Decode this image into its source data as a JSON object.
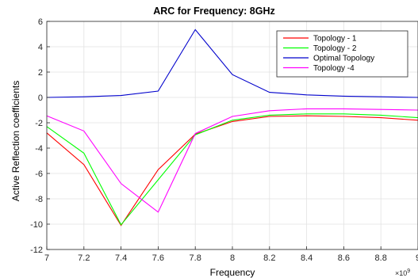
{
  "chart_data": {
    "type": "line",
    "title": "ARC for Frequency: 8GHz",
    "xlabel": "Frequency",
    "ylabel": "Active Reflection coefficients",
    "x_exponent_label": "×10",
    "x_exponent_power": "9",
    "xlim": [
      7.0,
      9.0
    ],
    "ylim": [
      -12,
      6
    ],
    "x_ticks": [
      7.0,
      7.2,
      7.4,
      7.6,
      7.8,
      8.0,
      8.2,
      8.4,
      8.6,
      8.8,
      9.0
    ],
    "x_tick_labels": [
      "7",
      "7.2",
      "7.4",
      "7.6",
      "7.8",
      "8",
      "8.2",
      "8.4",
      "8.6",
      "8.8",
      "9"
    ],
    "y_ticks": [
      -12,
      -10,
      -8,
      -6,
      -4,
      -2,
      0,
      2,
      4,
      6
    ],
    "y_tick_labels": [
      "-12",
      "-10",
      "-8",
      "-6",
      "-4",
      "-2",
      "0",
      "2",
      "4",
      "6"
    ],
    "grid": true,
    "legend_position": "top-right",
    "x": [
      7.0,
      7.2,
      7.4,
      7.6,
      7.8,
      8.0,
      8.2,
      8.4,
      8.6,
      8.8,
      9.0
    ],
    "series": [
      {
        "name": "Topology - 1",
        "color": "#ff0000",
        "values": [
          -2.8,
          -5.3,
          -10.1,
          -5.7,
          -2.9,
          -1.9,
          -1.5,
          -1.45,
          -1.5,
          -1.6,
          -1.8
        ]
      },
      {
        "name": "Topology - 2",
        "color": "#00ff00",
        "values": [
          -2.3,
          -4.4,
          -10.05,
          -6.5,
          -2.95,
          -1.8,
          -1.4,
          -1.3,
          -1.3,
          -1.4,
          -1.6
        ]
      },
      {
        "name": "Optimal Topology",
        "color": "#0000cc",
        "values": [
          0.0,
          0.05,
          0.15,
          0.5,
          5.35,
          1.8,
          0.4,
          0.2,
          0.1,
          0.05,
          0.0
        ]
      },
      {
        "name": "Topology -4",
        "color": "#ff00ff",
        "values": [
          -1.45,
          -2.65,
          -6.8,
          -9.05,
          -2.85,
          -1.5,
          -1.05,
          -0.9,
          -0.9,
          -0.95,
          -1.0
        ]
      }
    ]
  }
}
